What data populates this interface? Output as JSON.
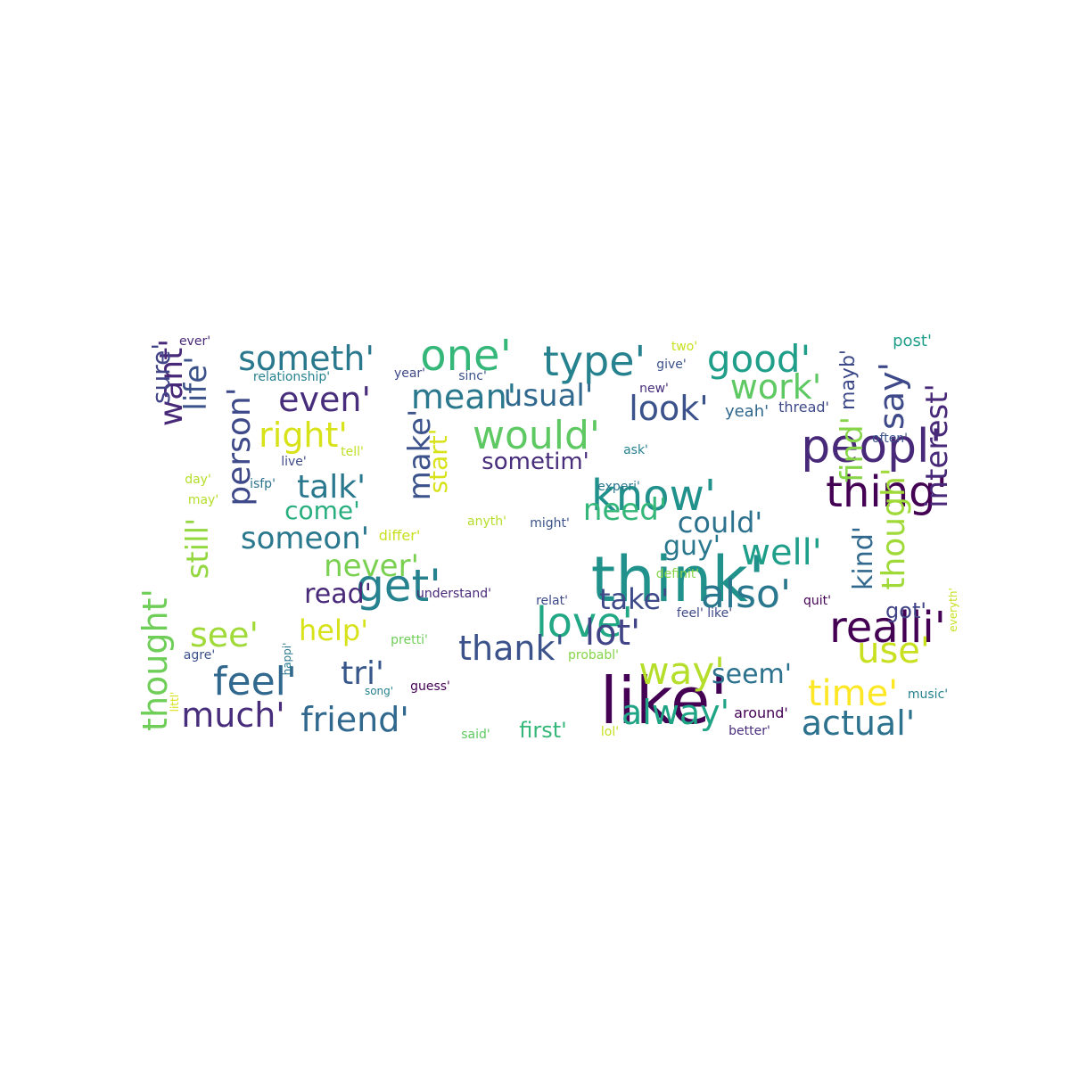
{
  "words": [
    {
      "text": "think'",
      "color": "#21918c"
    },
    {
      "text": "like'",
      "color": "#440154"
    },
    {
      "text": "peopl'",
      "color": "#482878"
    },
    {
      "text": "know'",
      "color": "#21918c"
    },
    {
      "text": "thing'",
      "color": "#440154"
    },
    {
      "text": "realli'",
      "color": "#440154"
    },
    {
      "text": "one'",
      "color": "#35b779"
    },
    {
      "text": "type'",
      "color": "#26828e"
    },
    {
      "text": "good'",
      "color": "#1f9e89"
    },
    {
      "text": "get'",
      "color": "#26828e"
    },
    {
      "text": "love'",
      "color": "#22a884"
    },
    {
      "text": "would'",
      "color": "#5ec962"
    },
    {
      "text": "make'",
      "color": "#3b528b"
    },
    {
      "text": "person'",
      "color": "#3e4989"
    },
    {
      "text": "want'",
      "color": "#482878"
    },
    {
      "text": "thought'",
      "color": "#6ece58"
    },
    {
      "text": "feel'",
      "color": "#31688e"
    },
    {
      "text": "also'",
      "color": "#2a788e"
    },
    {
      "text": "well'",
      "color": "#1f9e89"
    },
    {
      "text": "way'",
      "color": "#b5de2b"
    },
    {
      "text": "time'",
      "color": "#fde725"
    },
    {
      "text": "actual'",
      "color": "#2c728e"
    },
    {
      "text": "friend'",
      "color": "#31688e"
    },
    {
      "text": "much'",
      "color": "#472d7b"
    },
    {
      "text": "alway'",
      "color": "#20a486"
    },
    {
      "text": "thank'",
      "color": "#3b528b"
    },
    {
      "text": "lot'",
      "color": "#414487"
    },
    {
      "text": "use'",
      "color": "#c8e020"
    },
    {
      "text": "say'",
      "color": "#3e4989"
    },
    {
      "text": "interest'",
      "color": "#482878"
    },
    {
      "text": "though'",
      "color": "#a0da39"
    },
    {
      "text": "kind'",
      "color": "#31688e"
    },
    {
      "text": "find'",
      "color": "#86d549"
    },
    {
      "text": "still'",
      "color": "#93d741"
    },
    {
      "text": "life'",
      "color": "#3b528b"
    },
    {
      "text": "sure'",
      "color": "#414487"
    },
    {
      "text": "someth'",
      "color": "#2a788e"
    },
    {
      "text": "even'",
      "color": "#472d7b"
    },
    {
      "text": "mean'",
      "color": "#2a788e"
    },
    {
      "text": "usual'",
      "color": "#31688e"
    },
    {
      "text": "work'",
      "color": "#5ec962"
    },
    {
      "text": "look'",
      "color": "#3b528b"
    },
    {
      "text": "right'",
      "color": "#d8e219"
    },
    {
      "text": "talk'",
      "color": "#2a788e"
    },
    {
      "text": "come'",
      "color": "#29af7f"
    },
    {
      "text": "someon'",
      "color": "#2a788e"
    },
    {
      "text": "start'",
      "color": "#d8e219"
    },
    {
      "text": "sometim'",
      "color": "#472d7b"
    },
    {
      "text": "need'",
      "color": "#35b779"
    },
    {
      "text": "could'",
      "color": "#2c728e"
    },
    {
      "text": "guy'",
      "color": "#2a788e"
    },
    {
      "text": "never'",
      "color": "#7ad151"
    },
    {
      "text": "read'",
      "color": "#482878"
    },
    {
      "text": "take'",
      "color": "#3e4989"
    },
    {
      "text": "see'",
      "color": "#a0da39"
    },
    {
      "text": "help'",
      "color": "#d8e219"
    },
    {
      "text": "tri'",
      "color": "#38588c"
    },
    {
      "text": "seem'",
      "color": "#2c728e"
    },
    {
      "text": "got'",
      "color": "#414487"
    },
    {
      "text": "mayb'",
      "color": "#3e4989"
    },
    {
      "text": "post'",
      "color": "#1f9e89"
    },
    {
      "text": "ever'",
      "color": "#482878"
    },
    {
      "text": "two'",
      "color": "#c8e020"
    },
    {
      "text": "give'",
      "color": "#3b528b"
    },
    {
      "text": "relationship'",
      "color": "#26828e"
    },
    {
      "text": "year'",
      "color": "#3e4989"
    },
    {
      "text": "sinc'",
      "color": "#3b528b"
    },
    {
      "text": "new'",
      "color": "#472d7b"
    },
    {
      "text": "yeah'",
      "color": "#31688e"
    },
    {
      "text": "thread'",
      "color": "#3e4989"
    },
    {
      "text": "often'",
      "color": "#3b528b"
    },
    {
      "text": "tell'",
      "color": "#bddf26"
    },
    {
      "text": "ask'",
      "color": "#26828e"
    },
    {
      "text": "live'",
      "color": "#3e4989"
    },
    {
      "text": "day'",
      "color": "#b5de2b"
    },
    {
      "text": "isfp'",
      "color": "#2c728e"
    },
    {
      "text": "may'",
      "color": "#b5de2b"
    },
    {
      "text": "experi'",
      "color": "#2a788e"
    },
    {
      "text": "anyth'",
      "color": "#b5de2b"
    },
    {
      "text": "might'",
      "color": "#3b528b"
    },
    {
      "text": "differ'",
      "color": "#c8e020"
    },
    {
      "text": "definit'",
      "color": "#86d549"
    },
    {
      "text": "understand'",
      "color": "#482878"
    },
    {
      "text": "relat'",
      "color": "#3e4989"
    },
    {
      "text": "feel' like'",
      "color": "#3e4989"
    },
    {
      "text": "quit'",
      "color": "#440154"
    },
    {
      "text": "everyth'",
      "color": "#c8e020"
    },
    {
      "text": "pretti'",
      "color": "#6ece58"
    },
    {
      "text": "agre'",
      "color": "#3b528b"
    },
    {
      "text": "happi'",
      "color": "#2a788e"
    },
    {
      "text": "probabl'",
      "color": "#86d549"
    },
    {
      "text": "littl'",
      "color": "#d8e219"
    },
    {
      "text": "song'",
      "color": "#26828e"
    },
    {
      "text": "guess'",
      "color": "#440154"
    },
    {
      "text": "music'",
      "color": "#26828e"
    },
    {
      "text": "around'",
      "color": "#440154"
    },
    {
      "text": "said'",
      "color": "#5ec962"
    },
    {
      "text": "first'",
      "color": "#35b779"
    },
    {
      "text": "lol'",
      "color": "#c8e020"
    },
    {
      "text": "better'",
      "color": "#472d7b"
    }
  ]
}
